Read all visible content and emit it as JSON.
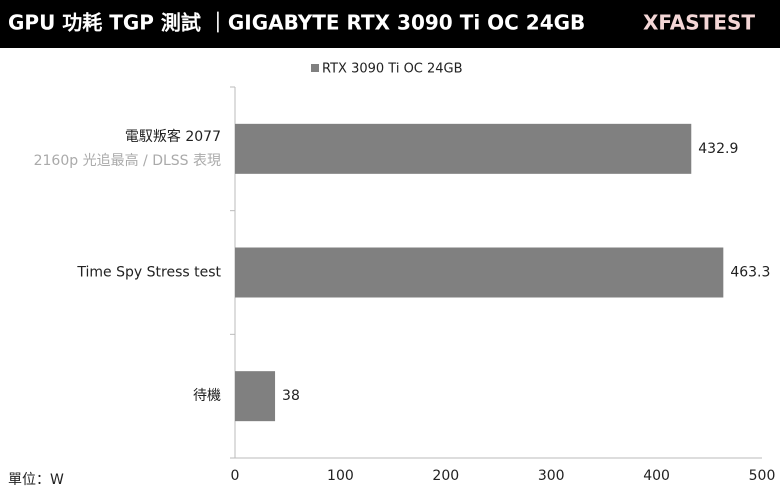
{
  "chart_data": {
    "type": "hbar",
    "title": "GPU 功耗 TGP 測試 ｜GIGABYTE RTX 3090 Ti OC 24GB",
    "brand": "XFASTEST",
    "unit_label": "單位：W",
    "categories": [
      "電馭叛客 2077",
      "Time Spy Stress test",
      "待機"
    ],
    "category_notes": [
      "2160p 光追最高 / DLSS 表現",
      null,
      null
    ],
    "series": [
      {
        "name": "RTX 3090 Ti OC 24GB",
        "color": "#808080",
        "values": [
          432.9,
          463.3,
          38
        ]
      }
    ],
    "xlim": [
      0,
      500
    ],
    "xticks": [
      0,
      100,
      200,
      300,
      400,
      500
    ],
    "legend": "top",
    "grid": false
  }
}
